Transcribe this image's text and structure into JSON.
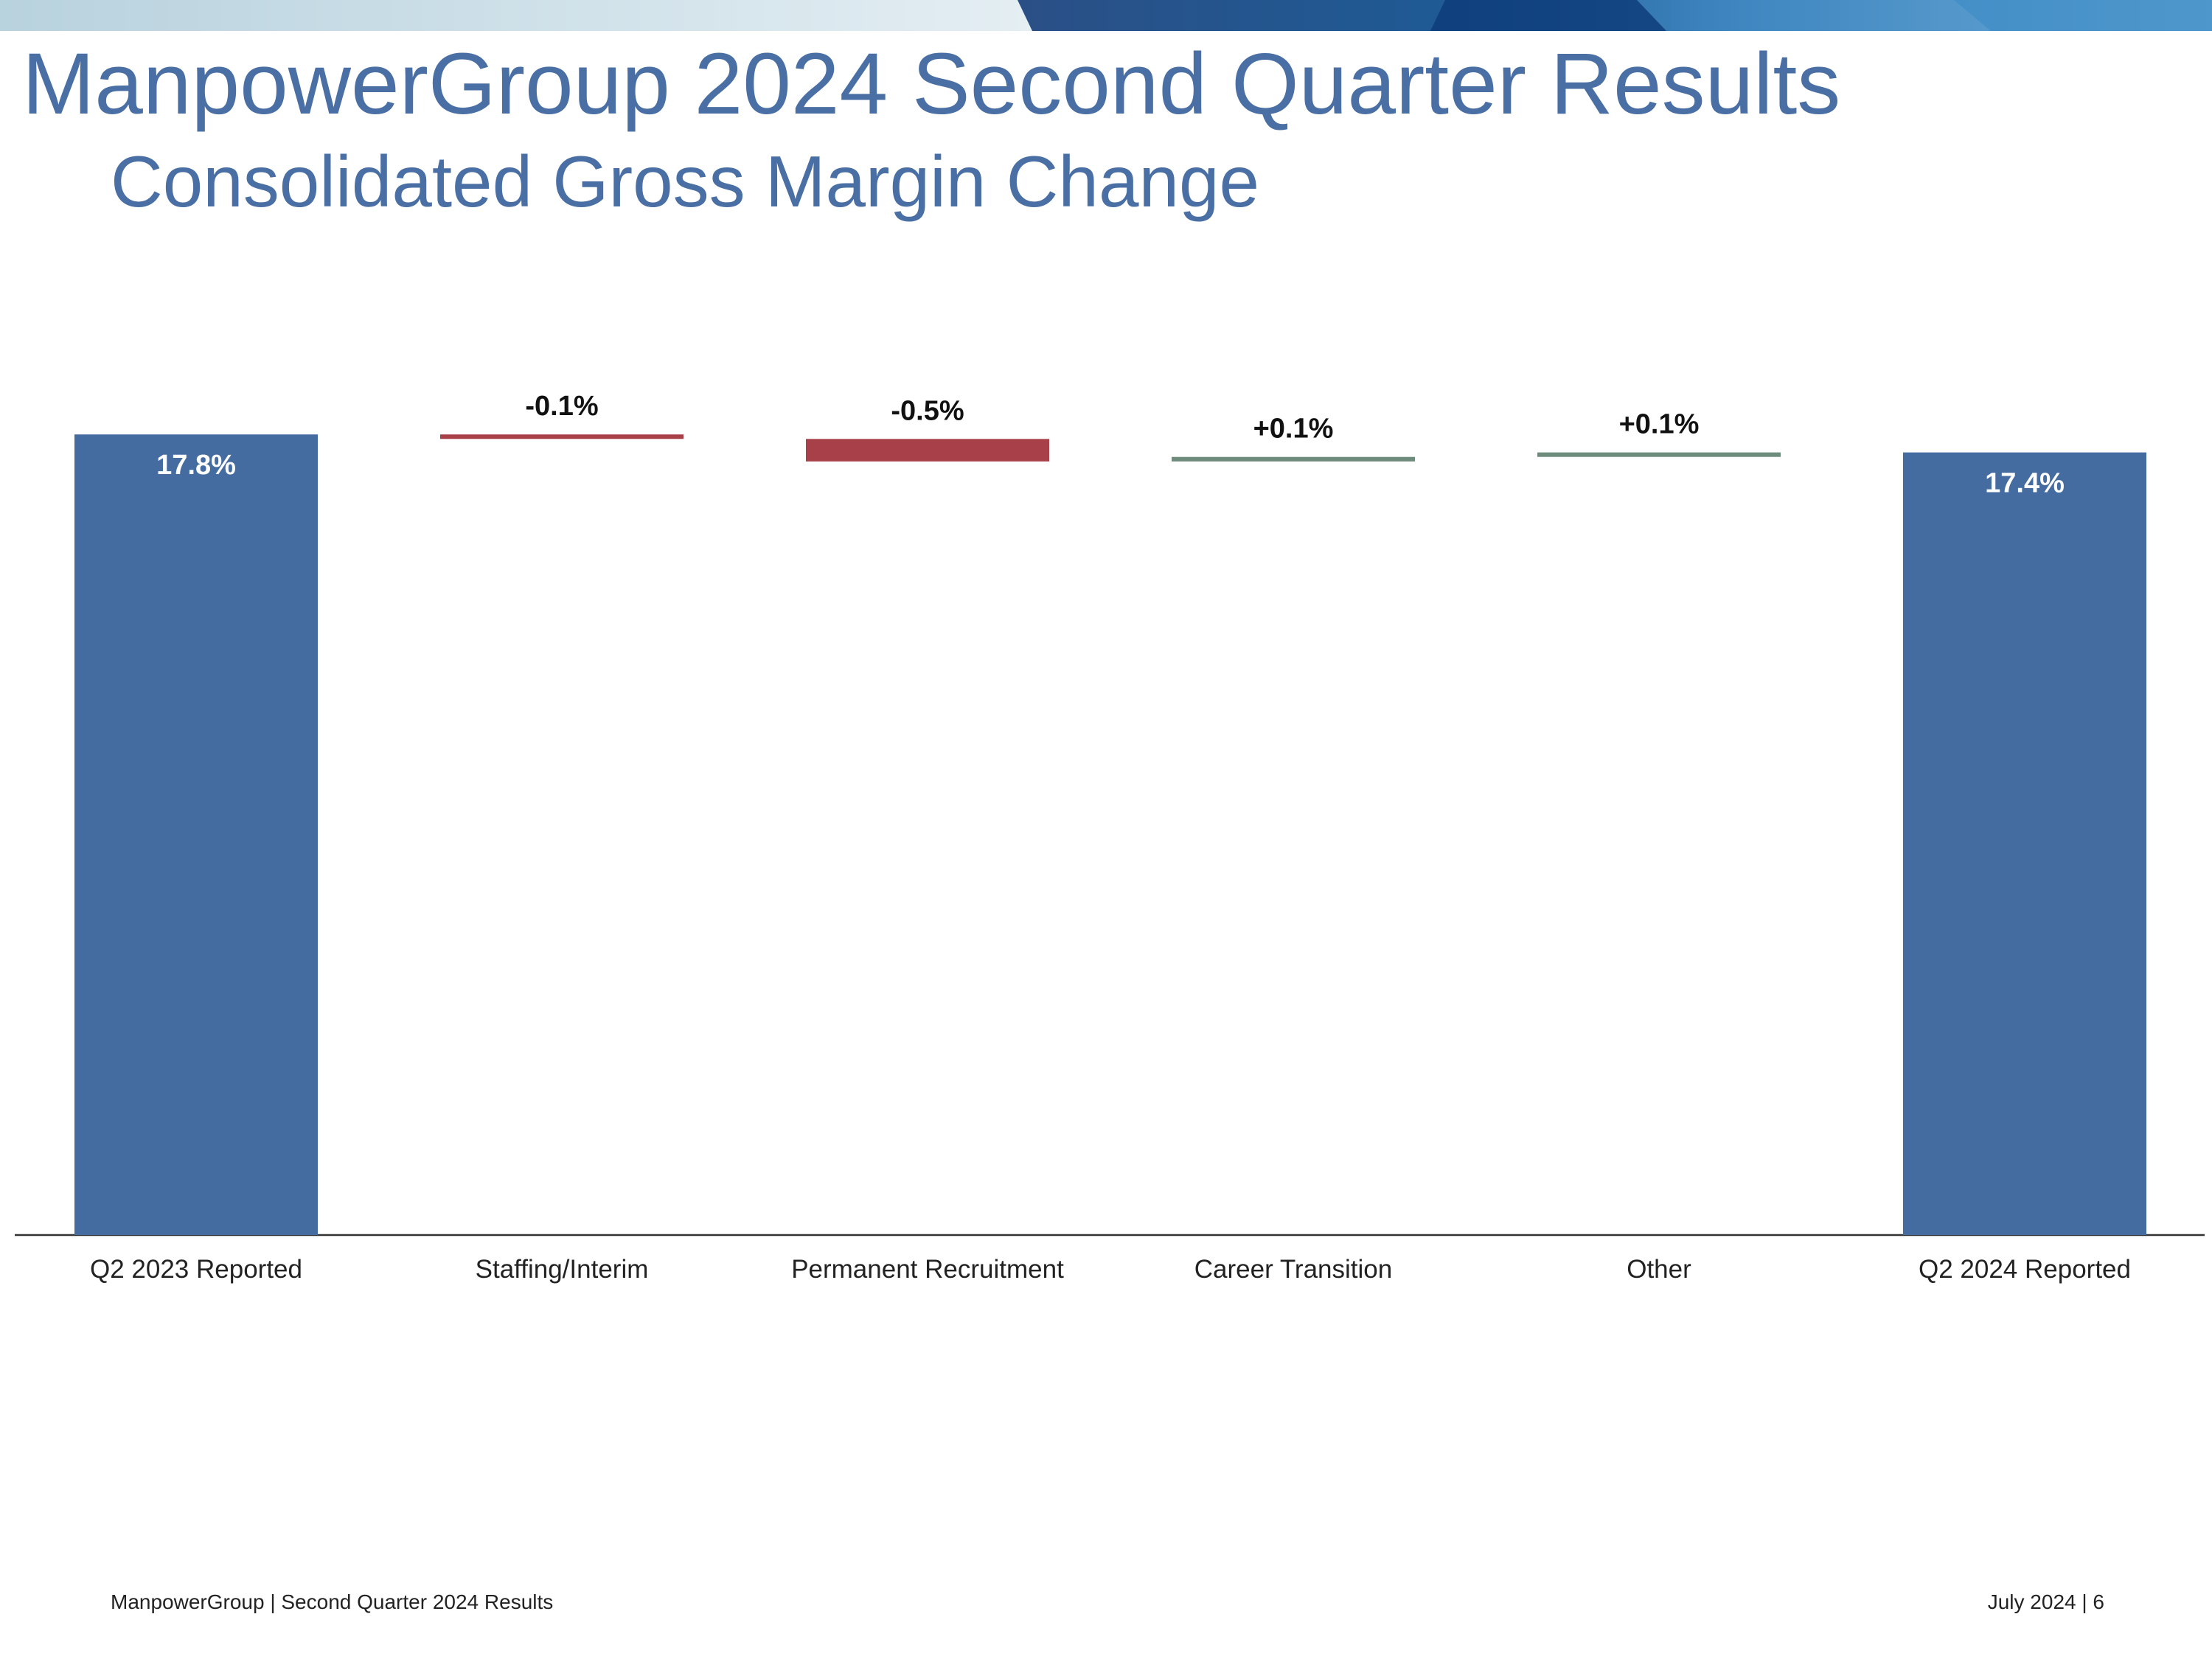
{
  "header": {
    "title": "ManpowerGroup 2024 Second Quarter Results",
    "subtitle": "Consolidated Gross Margin Change"
  },
  "colors": {
    "title": "#4a6fa5",
    "total_bar": "#456ca1",
    "decrease_bar": "#a8404a",
    "increase_bar": "#6e8c7c"
  },
  "chart_data": {
    "type": "bar",
    "subtype": "waterfall",
    "categories": [
      "Q2 2023 Reported",
      "Staffing/Interim",
      "Permanent Recruitment",
      "Career Transition",
      "Other",
      "Q2 2024 Reported"
    ],
    "values": [
      17.8,
      -0.1,
      -0.5,
      0.1,
      0.1,
      17.4
    ],
    "kinds": [
      "total",
      "decrease",
      "decrease",
      "increase",
      "increase",
      "total"
    ],
    "data_labels": [
      "17.8%",
      "-0.1%",
      "-0.5%",
      "+0.1%",
      "+0.1%",
      "17.4%"
    ],
    "unit": "%",
    "ylim": [
      0,
      18
    ],
    "grid": false,
    "legend": "none"
  },
  "footer": {
    "left": "ManpowerGroup  |  Second Quarter 2024 Results",
    "right": "July 2024   |   6"
  }
}
